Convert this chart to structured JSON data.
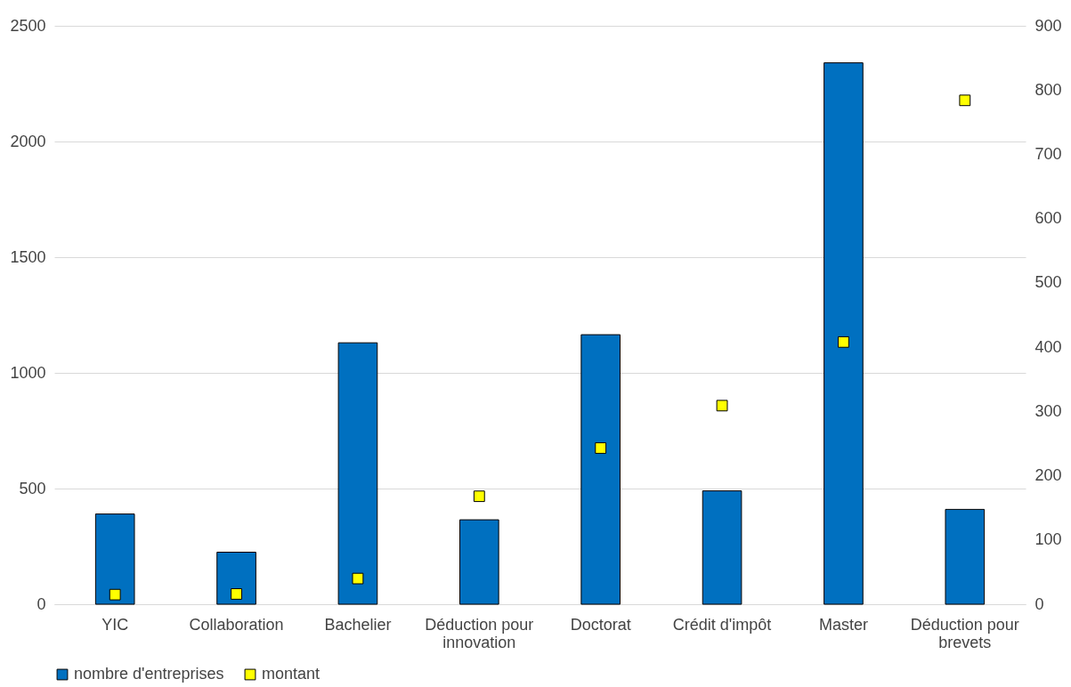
{
  "chart_data": {
    "type": "bar",
    "categories": [
      "YIC",
      "Collaboration",
      "Bachelier",
      "Déduction pour innovation",
      "Doctorat",
      "Crédit d'impôt",
      "Master",
      "Déduction pour brevets"
    ],
    "series": [
      {
        "name": "nombre d'entreprises",
        "color": "#0070c0",
        "values": [
          390,
          225,
          1130,
          365,
          1165,
          490,
          2340,
          410
        ]
      },
      {
        "name": "montant",
        "type": "scatter",
        "axis": "y2",
        "color": "#ffff00",
        "values": [
          15,
          16,
          40,
          168,
          243,
          309,
          408,
          784
        ]
      }
    ],
    "ylim": [
      0,
      2500
    ],
    "yticks": [
      0,
      500,
      1000,
      1500,
      2000,
      2500
    ],
    "y2lim": [
      0,
      900
    ],
    "y2ticks": [
      0,
      100,
      200,
      300,
      400,
      500,
      600,
      700,
      800,
      900
    ],
    "grid": "y",
    "legend": "bottom",
    "marker": "square"
  }
}
